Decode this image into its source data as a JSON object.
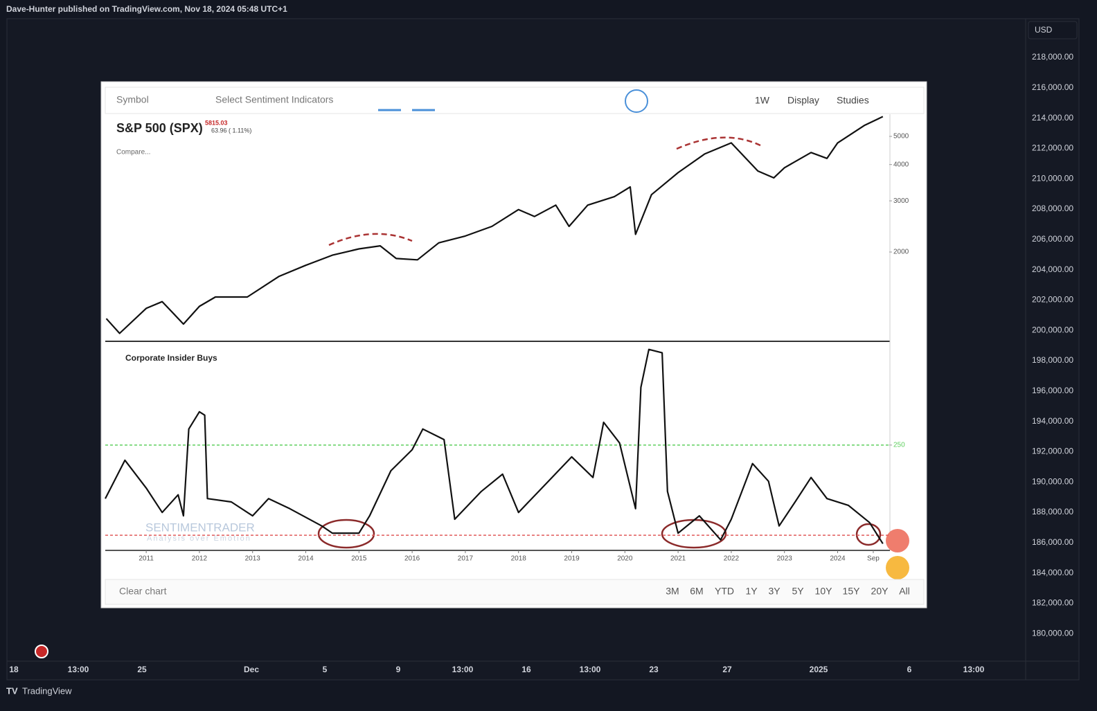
{
  "header": {
    "publisher": "Dave-Hunter published on TradingView.com, Nov 18, 2024 05:48 UTC+1"
  },
  "price_axis": {
    "currency": "USD",
    "labels": [
      "218,000.00",
      "216,000.00",
      "214,000.00",
      "212,000.00",
      "210,000.00",
      "208,000.00",
      "206,000.00",
      "204,000.00",
      "202,000.00",
      "200,000.00",
      "198,000.00",
      "196,000.00",
      "194,000.00",
      "192,000.00",
      "190,000.00",
      "188,000.00",
      "186,000.00",
      "184,000.00",
      "182,000.00",
      "180,000.00"
    ]
  },
  "time_axis": {
    "labels": [
      "18",
      "13:00",
      "25",
      "Dec",
      "5",
      "9",
      "13:00",
      "16",
      "13:00",
      "23",
      "27",
      "2025",
      "6",
      "13:00"
    ]
  },
  "footer": {
    "brand": "TradingView"
  },
  "embedded": {
    "toolbar": {
      "symbol": "Symbol",
      "indicators": "Select Sentiment Indicators",
      "interval": "1W",
      "display": "Display",
      "studies": "Studies"
    },
    "instrument": {
      "name": "S&P 500 (SPX)",
      "price": "5815.03",
      "change": "63.96 ( 1.11%)",
      "compare": "Compare..."
    },
    "indicator_title": "Corporate Insider Buys",
    "watermark": {
      "brand": "SENTIMENTRADER",
      "tagline": "Analysis over Emotion"
    },
    "bottom_bar": {
      "clear": "Clear chart",
      "ranges": [
        "3M",
        "6M",
        "YTD",
        "1Y",
        "3Y",
        "5Y",
        "10Y",
        "15Y",
        "20Y",
        "All"
      ]
    }
  },
  "chart_data": [
    {
      "type": "line",
      "title": "S&P 500 (SPX)",
      "log_scale": true,
      "color": "#111111",
      "x": [
        2010.25,
        2010.5,
        2011.0,
        2011.3,
        2011.7,
        2012.0,
        2012.3,
        2012.9,
        2013.5,
        2014.0,
        2014.5,
        2015.0,
        2015.4,
        2015.7,
        2016.1,
        2016.5,
        2017.0,
        2017.5,
        2018.0,
        2018.3,
        2018.7,
        2018.95,
        2019.3,
        2019.8,
        2020.1,
        2020.2,
        2020.5,
        2021.0,
        2021.5,
        2022.0,
        2022.5,
        2022.8,
        2023.0,
        2023.5,
        2023.8,
        2024.0,
        2024.5,
        2024.85
      ],
      "values": [
        1180,
        1050,
        1280,
        1350,
        1130,
        1300,
        1400,
        1400,
        1650,
        1800,
        1950,
        2050,
        2100,
        1900,
        1880,
        2150,
        2270,
        2450,
        2800,
        2650,
        2900,
        2450,
        2900,
        3100,
        3350,
        2300,
        3150,
        3750,
        4350,
        4750,
        3800,
        3600,
        3900,
        4400,
        4200,
        4750,
        5450,
        5850
      ],
      "xlim": [
        2010.23,
        2024.97
      ],
      "ylim": [
        991,
        5960
      ],
      "yticks": [
        2000,
        3000,
        4000,
        5000
      ]
    },
    {
      "type": "line",
      "title": "Corporate Insider Buys",
      "color": "#111111",
      "x": [
        2010.23,
        2010.6,
        2011.0,
        2011.3,
        2011.6,
        2011.7,
        2011.8,
        2012.0,
        2012.1,
        2012.15,
        2012.6,
        2013.0,
        2013.3,
        2013.7,
        2014.3,
        2014.5,
        2015.0,
        2015.2,
        2015.6,
        2016.0,
        2016.2,
        2016.6,
        2016.8,
        2017.3,
        2017.7,
        2018.0,
        2018.5,
        2019.0,
        2019.4,
        2019.6,
        2019.9,
        2020.2,
        2020.3,
        2020.45,
        2020.7,
        2020.8,
        2021.0,
        2021.4,
        2021.8,
        2022.0,
        2022.4,
        2022.7,
        2022.9,
        2023.2,
        2023.5,
        2023.8,
        2024.2,
        2024.6,
        2024.85
      ],
      "values": [
        123,
        214,
        148,
        90,
        132,
        82,
        288,
        329,
        321,
        123,
        115,
        82,
        123,
        99,
        58,
        41,
        41,
        82,
        189,
        239,
        288,
        263,
        74,
        140,
        181,
        90,
        156,
        222,
        173,
        304,
        255,
        99,
        387,
        477,
        469,
        140,
        41,
        82,
        25,
        74,
        206,
        164,
        58,
        115,
        173,
        123,
        107,
        66,
        16
      ],
      "xlim": [
        2010.23,
        2024.97
      ],
      "ylim": [
        0,
        493
      ],
      "xticks": [
        2011,
        2012,
        2013,
        2014,
        2015,
        2016,
        2017,
        2018,
        2019,
        2020,
        2021,
        2022,
        2023,
        2024,
        {
          "value": 2024.67,
          "label": "Sep"
        }
      ],
      "yticks": [
        250
      ],
      "reference_lines": [
        {
          "value": 250,
          "color": "#5fcf5f"
        },
        {
          "value": 36,
          "color": "#e05a5a"
        }
      ]
    }
  ]
}
